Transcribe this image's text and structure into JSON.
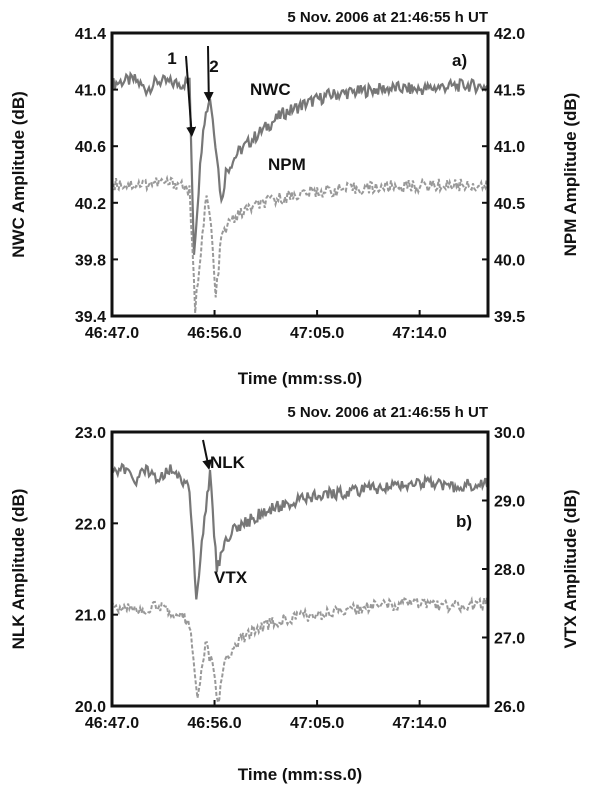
{
  "chart_data": [
    {
      "type": "line",
      "title": "5 Nov. 2006 at 21:46:55 h UT",
      "panel_label": "a)",
      "xlabel": "Time (mm:ss.0)",
      "ylabel_left": "NWC Amplitude (dB)",
      "ylabel_right": "NPM Amplitude (dB)",
      "x_range_seconds": [
        0,
        33
      ],
      "x_ticks": [
        "46:47.0",
        "46:56.0",
        "47:05.0",
        "47:14.0"
      ],
      "y_left_range": [
        39.4,
        41.4
      ],
      "y_left_ticks": [
        "39.4",
        "39.8",
        "40.2",
        "40.6",
        "41.0",
        "41.4"
      ],
      "y_right_range": [
        39.5,
        42.0
      ],
      "y_right_ticks": [
        "39.5",
        "40.0",
        "40.5",
        "41.0",
        "41.5",
        "42.0"
      ],
      "grid": false,
      "annotations": [
        {
          "text": "1",
          "x": "46:54.0"
        },
        {
          "text": "2",
          "x": "46:55.5"
        }
      ],
      "series": [
        {
          "name": "NWC",
          "axis": "left",
          "style": "solid",
          "color": "#777777",
          "points": [
            [
              "46:47.0",
              41.04
            ],
            [
              "46:48.0",
              41.06
            ],
            [
              "46:49.0",
              41.07
            ],
            [
              "46:50.0",
              41.0
            ],
            [
              "46:51.0",
              41.06
            ],
            [
              "46:52.0",
              41.05
            ],
            [
              "46:53.0",
              41.04
            ],
            [
              "46:53.8",
              41.05
            ],
            [
              "46:54.2",
              39.85
            ],
            [
              "46:54.6",
              40.3
            ],
            [
              "46:55.0",
              40.75
            ],
            [
              "46:55.6",
              40.95
            ],
            [
              "46:56.2",
              40.55
            ],
            [
              "46:56.6",
              40.2
            ],
            [
              "46:57.0",
              40.42
            ],
            [
              "46:58.0",
              40.55
            ],
            [
              "47:00.0",
              40.7
            ],
            [
              "47:02.0",
              40.83
            ],
            [
              "47:04.0",
              40.9
            ],
            [
              "47:06.0",
              40.96
            ],
            [
              "47:08.0",
              40.98
            ],
            [
              "47:10.0",
              41.0
            ],
            [
              "47:12.0",
              41.01
            ],
            [
              "47:14.0",
              41.0
            ],
            [
              "47:16.0",
              41.02
            ],
            [
              "47:18.0",
              41.03
            ],
            [
              "47:20.0",
              41.02
            ]
          ]
        },
        {
          "name": "NPM",
          "axis": "right",
          "style": "dashed",
          "color": "#999999",
          "points": [
            [
              "46:47.0",
              40.67
            ],
            [
              "46:49.0",
              40.66
            ],
            [
              "46:51.0",
              40.68
            ],
            [
              "46:53.0",
              40.67
            ],
            [
              "46:53.8",
              40.6
            ],
            [
              "46:54.3",
              39.55
            ],
            [
              "46:54.8",
              40.1
            ],
            [
              "46:55.3",
              40.55
            ],
            [
              "46:55.7",
              40.3
            ],
            [
              "46:56.1",
              39.65
            ],
            [
              "46:56.6",
              40.2
            ],
            [
              "46:57.5",
              40.35
            ],
            [
              "46:59.0",
              40.45
            ],
            [
              "47:01.0",
              40.52
            ],
            [
              "47:03.0",
              40.57
            ],
            [
              "47:05.0",
              40.6
            ],
            [
              "47:08.0",
              40.62
            ],
            [
              "47:11.0",
              40.64
            ],
            [
              "47:14.0",
              40.65
            ],
            [
              "47:17.0",
              40.66
            ],
            [
              "47:20.0",
              40.65
            ]
          ]
        }
      ]
    },
    {
      "type": "line",
      "title": "5 Nov. 2006 at 21:46:55 h UT",
      "panel_label": "b)",
      "xlabel": "Time (mm:ss.0)",
      "ylabel_left": "NLK Amplitude (dB)",
      "ylabel_right": "VTX Amplitude (dB)",
      "x_range_seconds": [
        0,
        33
      ],
      "x_ticks": [
        "46:47.0",
        "46:56.0",
        "47:05.0",
        "47:14.0"
      ],
      "y_left_range": [
        20.0,
        23.0
      ],
      "y_left_ticks": [
        "20.0",
        "21.0",
        "22.0",
        "23.0"
      ],
      "y_right_range": [
        26.0,
        30.0
      ],
      "y_right_ticks": [
        "26.0",
        "27.0",
        "28.0",
        "29.0",
        "30.0"
      ],
      "grid": false,
      "annotations": [
        {
          "text": "",
          "x": "46:55.5"
        }
      ],
      "series": [
        {
          "name": "NLK",
          "axis": "left",
          "style": "solid",
          "color": "#777777",
          "points": [
            [
              "46:47.0",
              22.55
            ],
            [
              "46:48.0",
              22.6
            ],
            [
              "46:49.0",
              22.45
            ],
            [
              "46:50.0",
              22.6
            ],
            [
              "46:51.0",
              22.5
            ],
            [
              "46:52.0",
              22.6
            ],
            [
              "46:53.0",
              22.5
            ],
            [
              "46:53.8",
              22.4
            ],
            [
              "46:54.4",
              21.15
            ],
            [
              "46:55.0",
              21.9
            ],
            [
              "46:55.6",
              22.55
            ],
            [
              "46:56.2",
              21.5
            ],
            [
              "46:57.0",
              21.85
            ],
            [
              "46:58.0",
              21.95
            ],
            [
              "47:00.0",
              22.1
            ],
            [
              "47:02.0",
              22.2
            ],
            [
              "47:05.0",
              22.3
            ],
            [
              "47:08.0",
              22.35
            ],
            [
              "47:11.0",
              22.4
            ],
            [
              "47:14.0",
              22.45
            ],
            [
              "47:17.0",
              22.4
            ],
            [
              "47:20.0",
              22.45
            ]
          ]
        },
        {
          "name": "VTX",
          "axis": "right",
          "style": "dashed",
          "color": "#999999",
          "points": [
            [
              "46:47.0",
              27.45
            ],
            [
              "46:49.0",
              27.4
            ],
            [
              "46:51.0",
              27.45
            ],
            [
              "46:53.0",
              27.35
            ],
            [
              "46:53.8",
              27.2
            ],
            [
              "46:54.5",
              26.1
            ],
            [
              "46:55.2",
              26.9
            ],
            [
              "46:55.8",
              26.6
            ],
            [
              "46:56.3",
              26.05
            ],
            [
              "46:57.0",
              26.7
            ],
            [
              "46:58.5",
              27.0
            ],
            [
              "47:00.0",
              27.15
            ],
            [
              "47:03.0",
              27.3
            ],
            [
              "47:06.0",
              27.35
            ],
            [
              "47:10.0",
              27.45
            ],
            [
              "47:14.0",
              27.5
            ],
            [
              "47:17.0",
              27.45
            ],
            [
              "47:20.0",
              27.5
            ]
          ]
        }
      ]
    }
  ]
}
